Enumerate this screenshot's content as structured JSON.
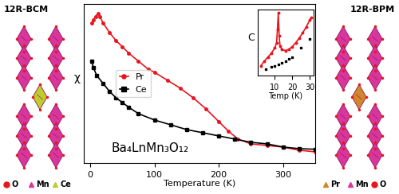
{
  "chart_data": [
    {
      "type": "line",
      "x_label": "Temperature (K)",
      "y_label": "χ",
      "xlim": [
        -10,
        350
      ],
      "xticks": [
        0,
        100,
        200,
        300
      ],
      "ylim": [
        0,
        1
      ],
      "tick_labels": "x",
      "legend": "center left",
      "annotations": [
        "Ba₄LnMn₃O₁₂"
      ],
      "series": [
        {
          "name": "Pr",
          "color": "#e8141e",
          "marker": "circle",
          "line_style": "solid",
          "x": [
            2,
            5,
            8,
            12,
            15,
            20,
            30,
            40,
            50,
            60,
            75,
            90,
            100,
            120,
            140,
            160,
            180,
            200,
            215,
            230,
            250,
            275,
            300,
            325,
            350
          ],
          "values": [
            0.88,
            0.9,
            0.92,
            0.94,
            0.92,
            0.88,
            0.82,
            0.77,
            0.73,
            0.69,
            0.64,
            0.59,
            0.57,
            0.52,
            0.47,
            0.41,
            0.34,
            0.26,
            0.2,
            0.15,
            0.12,
            0.11,
            0.1,
            0.08,
            0.07
          ]
        },
        {
          "name": "Ce",
          "color": "#000000",
          "marker": "square",
          "line_style": "solid",
          "x": [
            2,
            5,
            10,
            20,
            30,
            40,
            50,
            60,
            75,
            100,
            125,
            150,
            175,
            200,
            225,
            250,
            275,
            300,
            325,
            350
          ],
          "values": [
            0.64,
            0.6,
            0.55,
            0.5,
            0.45,
            0.41,
            0.38,
            0.35,
            0.31,
            0.27,
            0.24,
            0.21,
            0.19,
            0.17,
            0.15,
            0.13,
            0.12,
            0.1,
            0.09,
            0.086
          ]
        }
      ]
    },
    {
      "type": "line",
      "x_label": "Temp (K)",
      "y_label": "C",
      "xlim": [
        0,
        32
      ],
      "xticks": [
        10,
        20,
        30
      ],
      "ylim": [
        0,
        1
      ],
      "tick_labels": "x",
      "series": [
        {
          "color": "#e8141e",
          "marker": "circle",
          "line_style": "solid",
          "x": [
            2,
            4,
            6,
            8,
            10,
            11,
            11.5,
            12,
            12.5,
            13,
            14,
            16,
            18,
            20,
            22,
            24,
            26,
            28,
            30,
            31
          ],
          "values": [
            0.15,
            0.22,
            0.28,
            0.34,
            0.42,
            0.5,
            0.7,
            0.95,
            0.6,
            0.45,
            0.4,
            0.38,
            0.4,
            0.44,
            0.5,
            0.57,
            0.65,
            0.74,
            0.84,
            0.88
          ]
        },
        {
          "color": "#000000",
          "marker": "square",
          "line_style": "none",
          "x": [
            5,
            8,
            10,
            12,
            14,
            16,
            18,
            20,
            25,
            30
          ],
          "values": [
            0.1,
            0.13,
            0.15,
            0.17,
            0.2,
            0.22,
            0.25,
            0.28,
            0.42,
            0.56
          ]
        }
      ]
    }
  ],
  "structures": [
    {
      "title": "12R-BCM",
      "center_color": "#c0cc2e",
      "legend": [
        {
          "name": "O",
          "color": "#e8141e",
          "marker": "circle"
        },
        {
          "name": "Mn",
          "color": "#d9359c",
          "marker": "triangle"
        },
        {
          "name": "Ce",
          "color": "#c0cc2e",
          "marker": "triangle"
        }
      ]
    },
    {
      "title": "12R-BPM",
      "center_color": "#d4862a",
      "legend": [
        {
          "name": "Pr",
          "color": "#d4862a",
          "marker": "triangle"
        },
        {
          "name": "Mn",
          "color": "#d9359c",
          "marker": "triangle"
        },
        {
          "name": "O",
          "color": "#e8141e",
          "marker": "circle"
        }
      ]
    }
  ]
}
